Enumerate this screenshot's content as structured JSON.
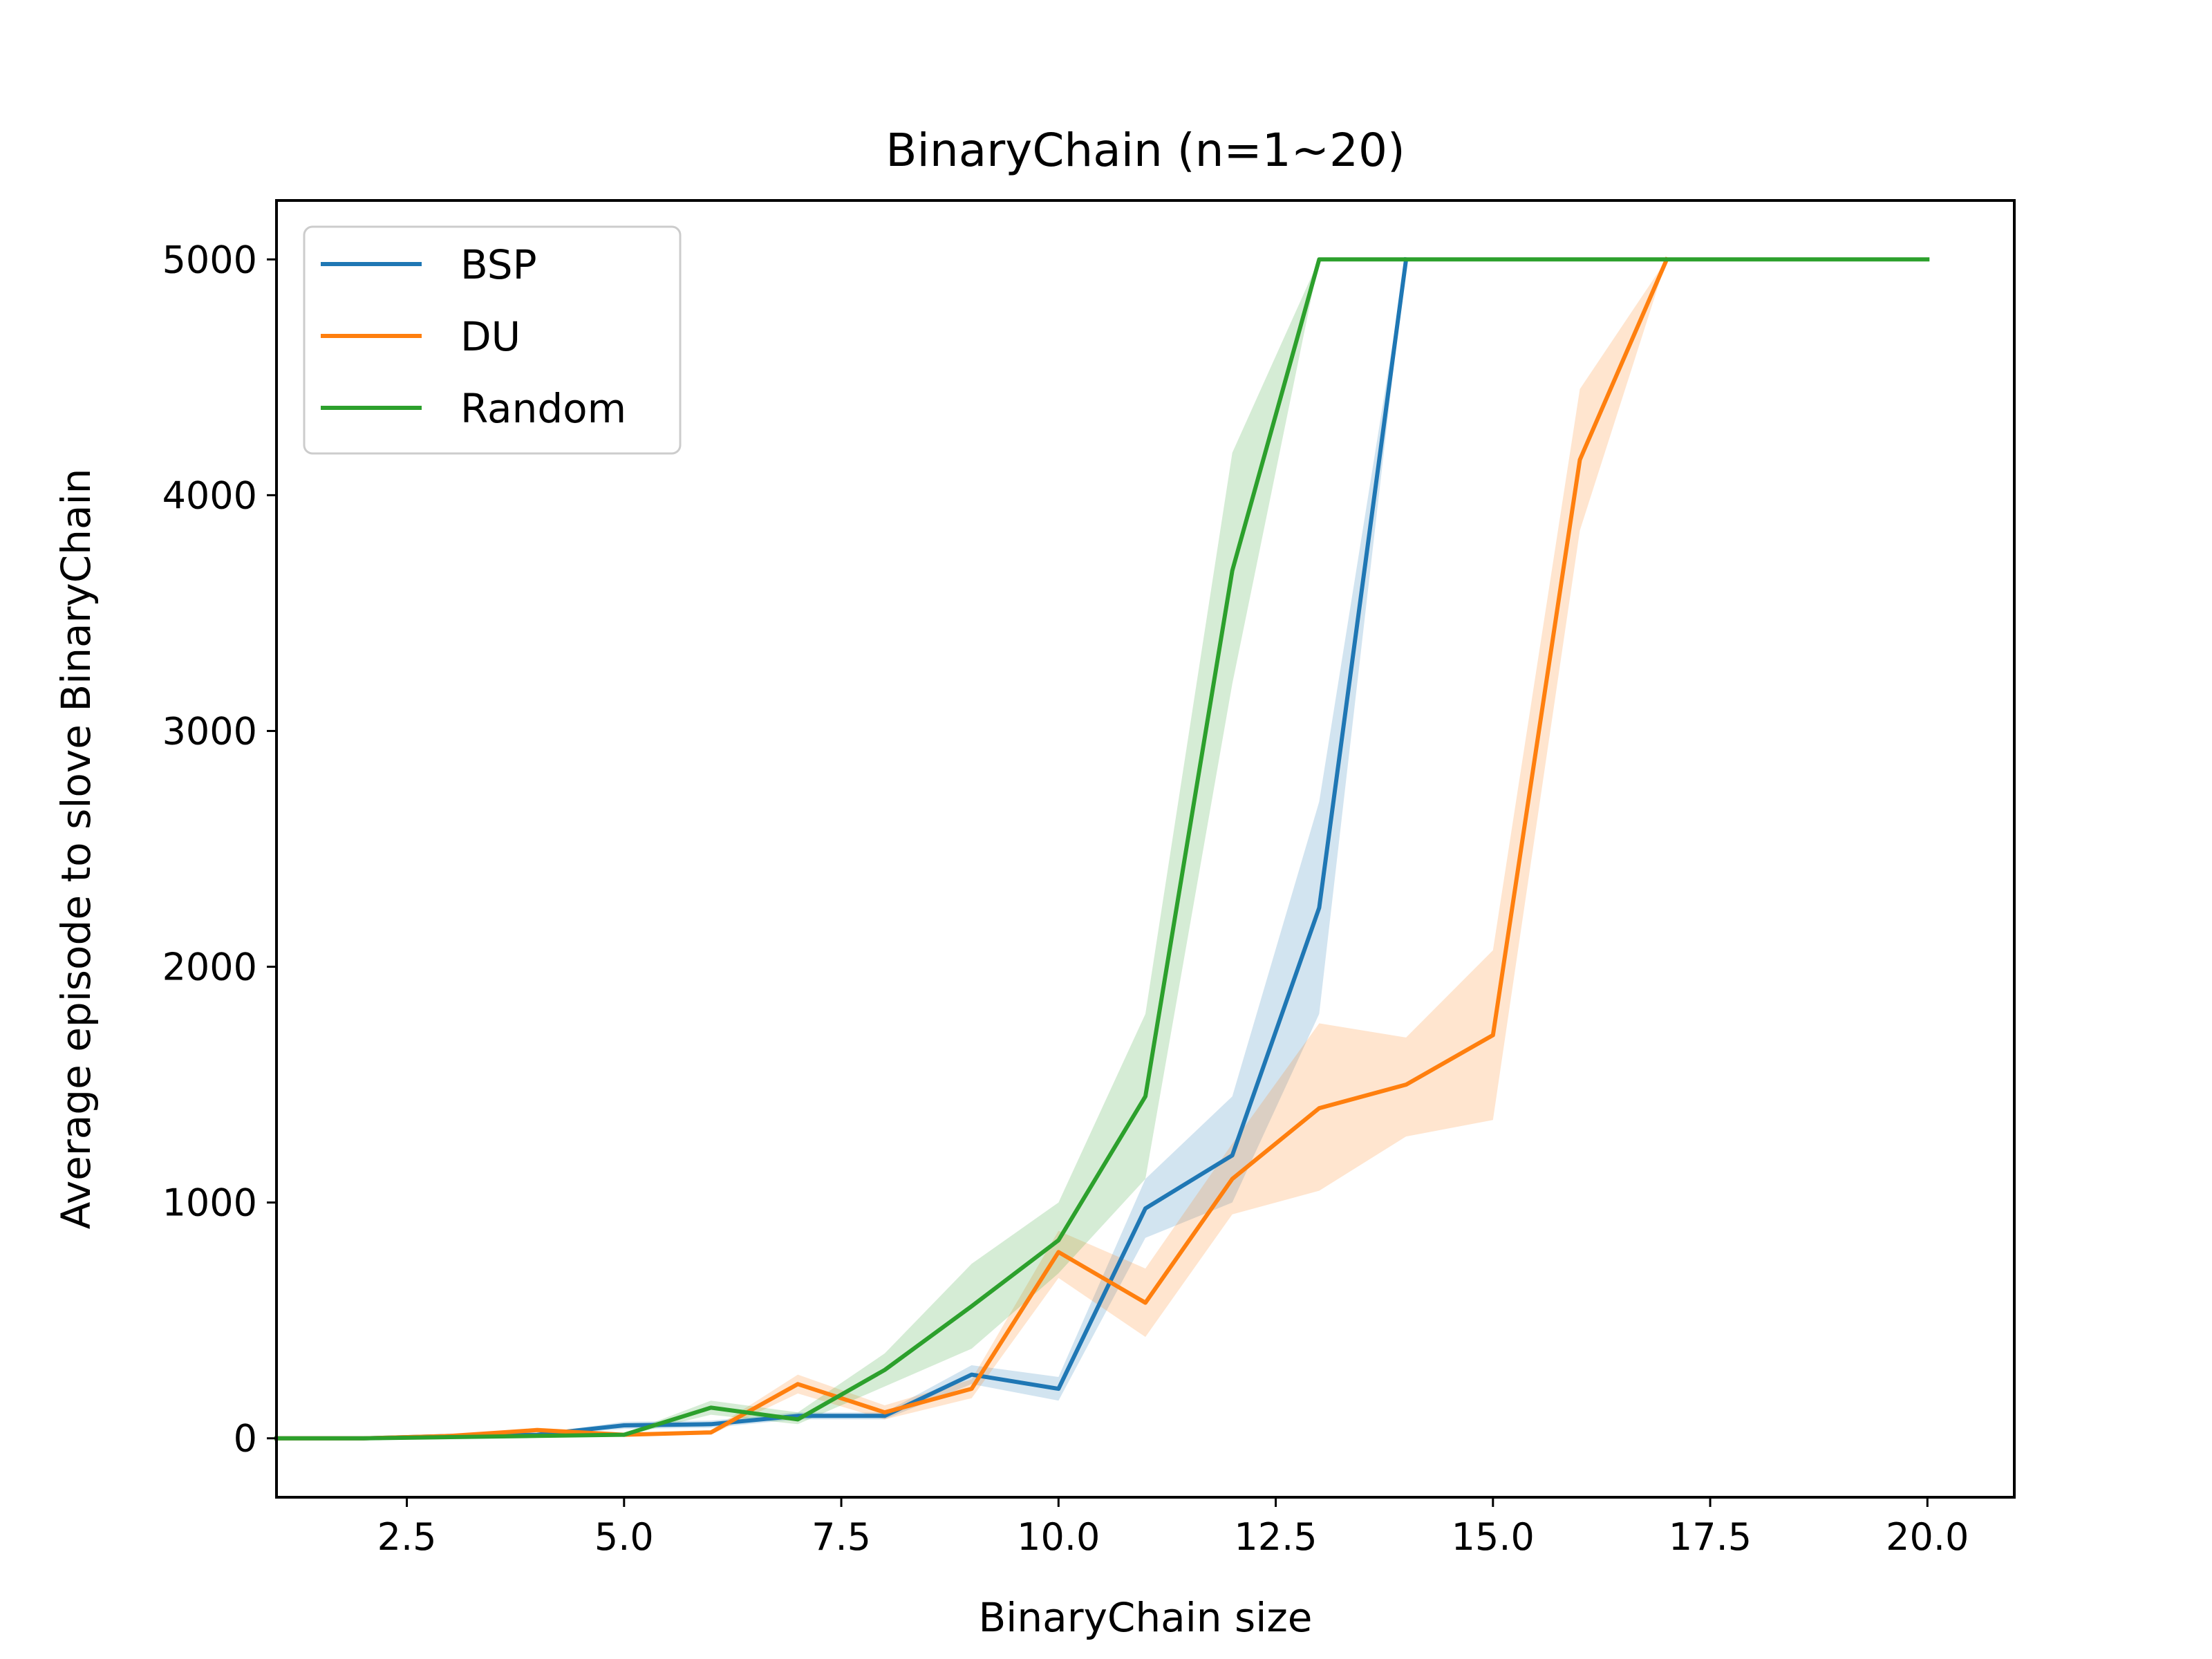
{
  "chart_data": {
    "type": "line",
    "title": "BinaryChain (n=1~20)",
    "xlabel": "BinaryChain size",
    "ylabel": "Average episode to slove BinaryChain",
    "xlim": [
      1,
      21
    ],
    "ylim": [
      -250,
      5250
    ],
    "xticks": [
      2.5,
      5.0,
      7.5,
      10.0,
      12.5,
      15.0,
      17.5,
      20.0
    ],
    "xtick_labels": [
      "2.5",
      "5.0",
      "7.5",
      "10.0",
      "12.5",
      "15.0",
      "17.5",
      "20.0"
    ],
    "yticks": [
      0,
      1000,
      2000,
      3000,
      4000,
      5000
    ],
    "ytick_labels": [
      "0",
      "1000",
      "2000",
      "3000",
      "4000",
      "5000"
    ],
    "grid": false,
    "legend_position": "top-left",
    "series": [
      {
        "name": "BSP",
        "color": "#1f77b4",
        "x": [
          1,
          2,
          3,
          4,
          5,
          6,
          7,
          8,
          9,
          10,
          11,
          12,
          13,
          14
        ],
        "values": [
          0,
          0,
          10,
          15,
          55,
          60,
          95,
          95,
          270,
          210,
          975,
          1200,
          2250,
          5000
        ],
        "lower": [
          0,
          0,
          5,
          10,
          40,
          45,
          80,
          80,
          230,
          160,
          850,
          1000,
          1800,
          5000
        ],
        "upper": [
          0,
          0,
          15,
          20,
          70,
          75,
          110,
          110,
          310,
          260,
          1100,
          1450,
          2700,
          5000
        ]
      },
      {
        "name": "DU",
        "color": "#ff7f0e",
        "x": [
          1,
          2,
          3,
          4,
          5,
          6,
          7,
          8,
          9,
          10,
          11,
          12,
          13,
          14,
          15,
          16,
          17
        ],
        "values": [
          0,
          0,
          10,
          35,
          15,
          25,
          230,
          110,
          210,
          790,
          575,
          1100,
          1400,
          1500,
          1710,
          4150,
          5000
        ],
        "lower": [
          0,
          0,
          5,
          25,
          10,
          15,
          190,
          80,
          170,
          680,
          430,
          950,
          1050,
          1280,
          1350,
          3850,
          5000
        ],
        "upper": [
          0,
          0,
          15,
          45,
          20,
          35,
          270,
          140,
          250,
          880,
          720,
          1250,
          1760,
          1700,
          2070,
          4450,
          5000
        ]
      },
      {
        "name": "Random",
        "color": "#2ca02c",
        "x": [
          1,
          2,
          3,
          4,
          5,
          6,
          7,
          8,
          9,
          10,
          11,
          12,
          13,
          14,
          15,
          16,
          17,
          18,
          19,
          20
        ],
        "values": [
          0,
          0,
          5,
          10,
          15,
          130,
          80,
          290,
          560,
          840,
          1450,
          3680,
          5000,
          5000,
          5000,
          5000,
          5000,
          5000,
          5000,
          5000
        ],
        "lower": [
          0,
          0,
          3,
          5,
          10,
          100,
          60,
          220,
          380,
          700,
          1100,
          3200,
          5000,
          5000,
          5000,
          5000,
          5000,
          5000,
          5000,
          5000
        ],
        "upper": [
          0,
          0,
          8,
          15,
          20,
          160,
          110,
          360,
          740,
          1000,
          1800,
          4180,
          5000,
          5000,
          5000,
          5000,
          5000,
          5000,
          5000,
          5000
        ]
      }
    ]
  }
}
